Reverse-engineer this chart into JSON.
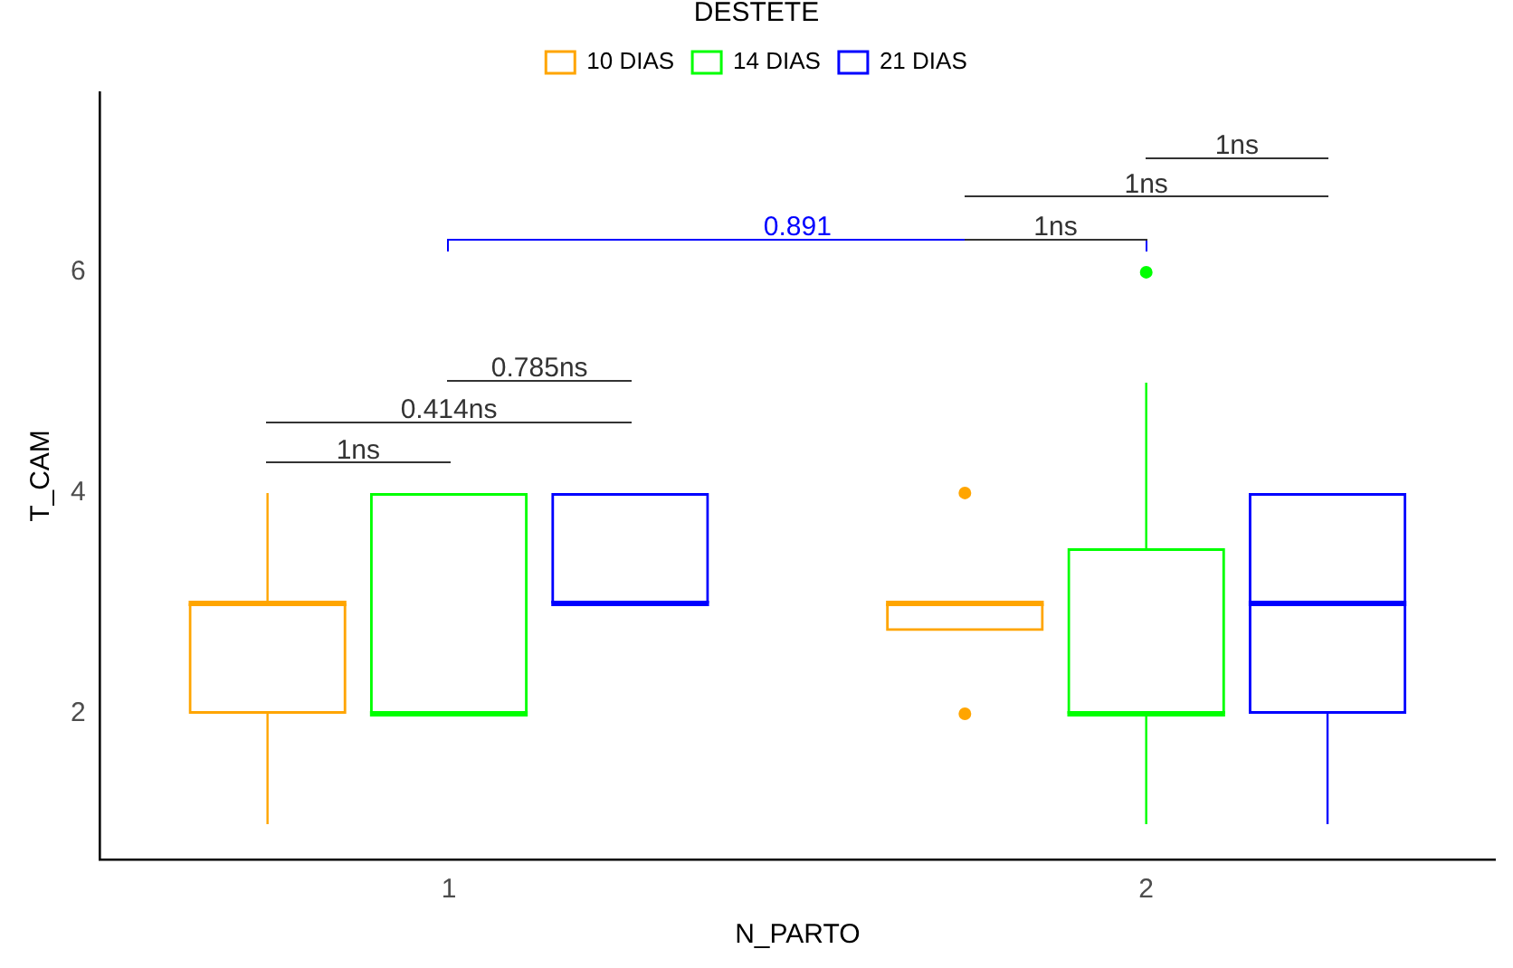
{
  "chart_data": {
    "type": "box",
    "xlabel": "N_PARTO",
    "ylabel": "T_CAM",
    "legend_title": "DESTETE",
    "legend": "top",
    "grid": false,
    "categories": [
      "1",
      "2"
    ],
    "ylim": [
      0.68,
      7.63
    ],
    "yticks": [
      2,
      4,
      6
    ],
    "series": [
      {
        "name": "10 DIAS",
        "color": "#ffa500",
        "boxes": [
          {
            "low": 1,
            "q1": 2,
            "median": 3,
            "q3": 3,
            "high": 4
          },
          {
            "low": 2.75,
            "q1": 2.75,
            "median": 3,
            "q3": 3,
            "high": 3,
            "outliers": [
              4,
              2
            ]
          }
        ]
      },
      {
        "name": "14 DIAS",
        "color": "#00ff00",
        "boxes": [
          {
            "low": 2,
            "q1": 2,
            "median": 2,
            "q3": 4,
            "high": 4
          },
          {
            "low": 1,
            "q1": 2,
            "median": 2,
            "q3": 3.5,
            "high": 5,
            "outliers": [
              6
            ]
          }
        ]
      },
      {
        "name": "21 DIAS",
        "color": "#0000ff",
        "boxes": [
          {
            "low": 3,
            "q1": 3,
            "median": 3,
            "q3": 4,
            "high": 4
          },
          {
            "low": 1,
            "q1": 2,
            "median": 3,
            "q3": 4,
            "high": 4
          }
        ]
      }
    ],
    "annotations": [
      "1ns",
      "0.414ns",
      "0.785ns",
      "0.891",
      "1ns",
      "1ns",
      "1ns"
    ]
  }
}
